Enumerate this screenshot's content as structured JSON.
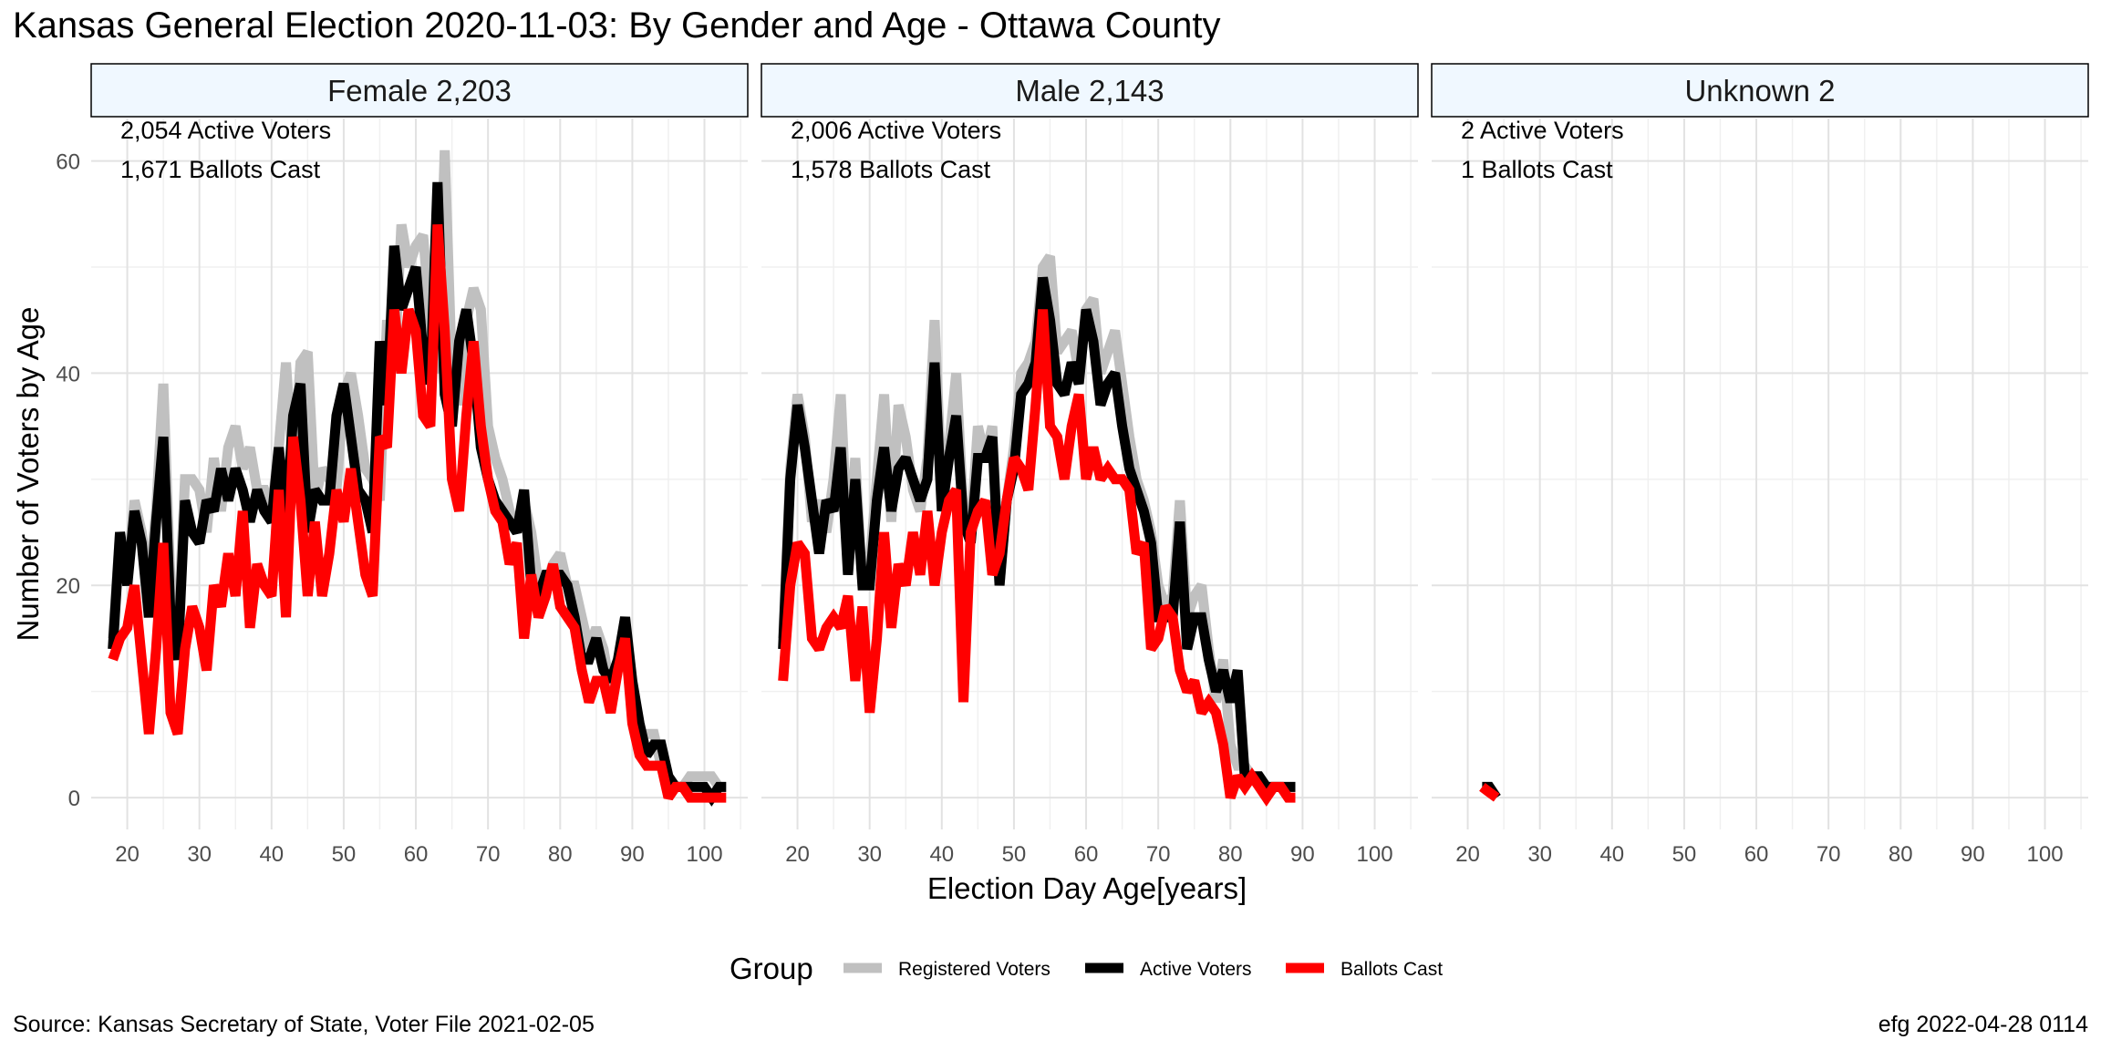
{
  "title": "Kansas General Election 2020-11-03:  By Gender and Age - Ottawa County",
  "footer": {
    "source": "Source:  Kansas Secretary of State, Voter File  2021-02-05",
    "stamp": "efg 2022-04-28 0114"
  },
  "legend": {
    "title": "Group",
    "items": [
      {
        "label": "Registered Voters",
        "color": "#c0c0c0"
      },
      {
        "label": "Active Voters",
        "color": "#000000"
      },
      {
        "label": "Ballots Cast",
        "color": "#ff0000"
      }
    ]
  },
  "chart_data": {
    "type": "line",
    "title": "Kansas General Election 2020-11-03:  By Gender and Age - Ottawa County",
    "xlabel": "Election Day Age[years]",
    "ylabel": "Number of Voters by Age",
    "xlim": [
      15,
      106
    ],
    "ylim": [
      -3,
      64
    ],
    "x_ticks": [
      20,
      30,
      40,
      50,
      60,
      70,
      80,
      90,
      100
    ],
    "y_ticks": [
      0,
      20,
      40,
      60
    ],
    "grid": true,
    "legend_position": "bottom",
    "panels": [
      {
        "label": "Female 2,203",
        "active_text": "2,054 Active Voters",
        "ballots_text": "1,671 Ballots Cast",
        "series": [
          {
            "name": "Registered Voters",
            "color": "#c0c0c0",
            "x_start": 18,
            "values": [
              15,
              25,
              21,
              28,
              25,
              20,
              27,
              39,
              20,
              15,
              30,
              30,
              29,
              25,
              32,
              27,
              33,
              35,
              31,
              33,
              29,
              29,
              27,
              33,
              41,
              31,
              41,
              42,
              28,
              31,
              30,
              29,
              38,
              40,
              36,
              31,
              30,
              28,
              45,
              40,
              54,
              50,
              52,
              53,
              45,
              40,
              61,
              40,
              37,
              45,
              48,
              46,
              35,
              32,
              30,
              27,
              25,
              28,
              25,
              20,
              20,
              22,
              23,
              20,
              20,
              17,
              14,
              16,
              14,
              10,
              12,
              17,
              8,
              6,
              6,
              6,
              3,
              2,
              1,
              1,
              2,
              2,
              2,
              2,
              1,
              1
            ]
          },
          {
            "name": "Active Voters",
            "color": "#000000",
            "x_start": 18,
            "values": [
              14,
              25,
              20,
              27,
              24,
              17,
              26,
              34,
              17,
              13,
              28,
              25,
              24,
              28,
              27,
              31,
              28,
              31,
              29,
              26,
              29,
              27,
              26,
              33,
              26,
              36,
              39,
              25,
              29,
              28,
              28,
              36,
              39,
              34,
              29,
              28,
              25,
              43,
              37,
              52,
              46,
              48,
              50,
              42,
              39,
              58,
              38,
              35,
              43,
              46,
              41,
              33,
              30,
              28,
              27,
              26,
              25,
              29,
              20,
              19,
              21,
              21,
              21,
              20,
              17,
              13,
              13,
              15,
              12,
              11,
              13,
              17,
              11,
              7,
              4,
              5,
              5,
              2,
              1,
              1,
              1,
              1,
              1,
              0,
              1,
              1
            ]
          },
          {
            "name": "Ballots Cast",
            "color": "#ff0000",
            "x_start": 18,
            "values": [
              13,
              15,
              16,
              20,
              13,
              6,
              14,
              24,
              8,
              6,
              14,
              18,
              16,
              12,
              20,
              18,
              23,
              19,
              27,
              16,
              22,
              20,
              19,
              29,
              17,
              34,
              28,
              19,
              26,
              19,
              23,
              29,
              26,
              31,
              26,
              21,
              19,
              34,
              33,
              46,
              40,
              46,
              44,
              36,
              35,
              54,
              44,
              30,
              27,
              36,
              43,
              35,
              30,
              27,
              26,
              22,
              24,
              15,
              21,
              17,
              19,
              22,
              18,
              17,
              16,
              12,
              9,
              11,
              11,
              8,
              12,
              15,
              7,
              4,
              3,
              3,
              3,
              0,
              1,
              1,
              0,
              0,
              0,
              0,
              0,
              0
            ]
          }
        ]
      },
      {
        "label": "Male 2,143",
        "active_text": "2,006 Active Voters",
        "ballots_text": "1,578 Ballots Cast",
        "series": [
          {
            "name": "Registered Voters",
            "color": "#c0c0c0",
            "x_start": 18,
            "values": [
              15,
              31,
              38,
              34,
              26,
              28,
              25,
              30,
              38,
              23,
              32,
              20,
              22,
              30,
              38,
              26,
              37,
              34,
              29,
              27,
              32,
              45,
              29,
              33,
              40,
              27,
              25,
              35,
              32,
              35,
              20,
              28,
              33,
              40,
              41,
              43,
              50,
              51,
              42,
              43,
              44,
              40,
              46,
              47,
              40,
              42,
              44,
              39,
              34,
              30,
              28,
              25,
              20,
              18,
              19,
              28,
              17,
              19,
              20,
              14,
              9,
              13,
              5,
              3,
              3,
              2,
              2,
              1,
              1,
              1,
              1,
              1
            ]
          },
          {
            "name": "Active Voters",
            "color": "#000000",
            "x_start": 18,
            "values": [
              14,
              30,
              37,
              33,
              28,
              23,
              28,
              27,
              33,
              21,
              30,
              20,
              20,
              28,
              33,
              27,
              31,
              32,
              30,
              28,
              30,
              41,
              27,
              32,
              36,
              26,
              24,
              32,
              32,
              34,
              20,
              28,
              31,
              38,
              39,
              41,
              49,
              45,
              39,
              38,
              41,
              39,
              46,
              43,
              37,
              39,
              40,
              35,
              31,
              29,
              27,
              24,
              17,
              17,
              17,
              26,
              14,
              17,
              17,
              13,
              10,
              12,
              9,
              12,
              2,
              2,
              2,
              1,
              1,
              1,
              1,
              1
            ]
          },
          {
            "name": "Ballots Cast",
            "color": "#ff0000",
            "x_start": 18,
            "values": [
              11,
              20,
              24,
              23,
              15,
              14,
              16,
              17,
              16,
              19,
              11,
              18,
              8,
              15,
              25,
              16,
              22,
              20,
              25,
              21,
              27,
              20,
              25,
              28,
              29,
              9,
              25,
              27,
              28,
              21,
              23,
              28,
              32,
              31,
              29,
              37,
              46,
              35,
              34,
              30,
              35,
              38,
              30,
              33,
              30,
              31,
              30,
              30,
              29,
              23,
              24,
              14,
              15,
              18,
              17,
              12,
              10,
              11,
              8,
              9,
              8,
              5,
              0,
              2,
              1,
              2,
              1,
              0,
              1,
              1,
              0,
              0
            ]
          }
        ]
      },
      {
        "label": "Unknown 2",
        "active_text": "2 Active Voters",
        "ballots_text": "1 Ballots Cast",
        "series": [
          {
            "name": "Registered Voters",
            "color": "#c0c0c0",
            "x_start": 22,
            "values": [
              1,
              1,
              0
            ]
          },
          {
            "name": "Active Voters",
            "color": "#000000",
            "x_start": 22,
            "values": [
              1,
              1,
              0
            ]
          },
          {
            "name": "Ballots Cast",
            "color": "#ff0000",
            "x_start": 22,
            "values": [
              1,
              0.5,
              0
            ]
          }
        ]
      }
    ]
  }
}
